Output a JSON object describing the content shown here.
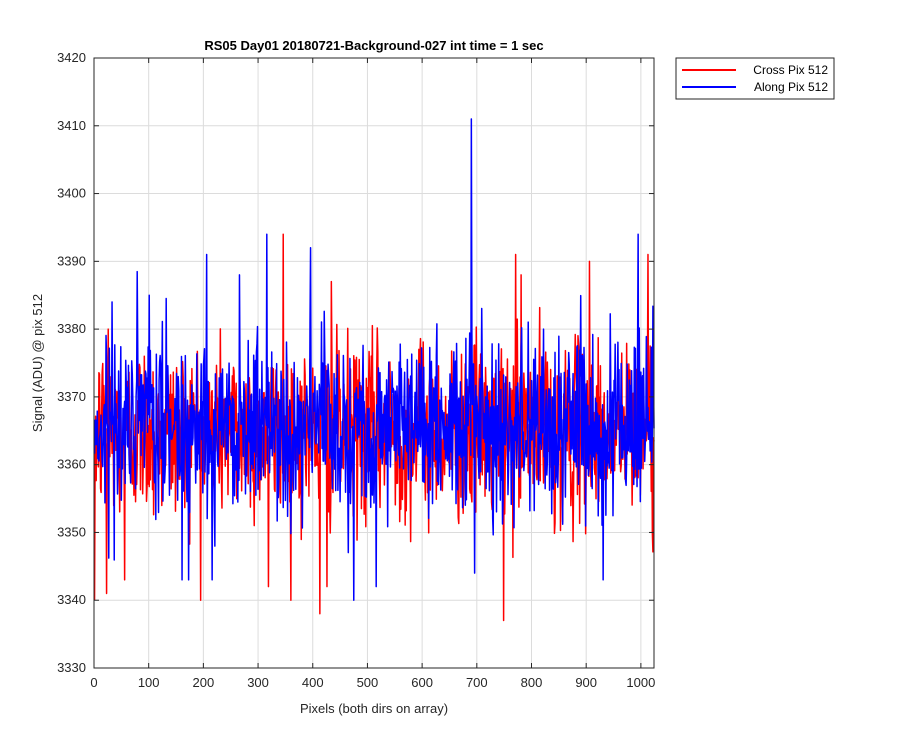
{
  "chart_data": {
    "type": "line",
    "title": "RS05 Day01 20180721-Background-027 int time = 1 sec",
    "xlabel": "Pixels (both dirs on array)",
    "ylabel": "Signal (ADU) @ pix 512",
    "xlim": [
      0,
      1024
    ],
    "ylim": [
      3330,
      3420
    ],
    "xticks": [
      0,
      100,
      200,
      300,
      400,
      500,
      600,
      700,
      800,
      900,
      1000
    ],
    "yticks": [
      3330,
      3340,
      3350,
      3360,
      3370,
      3380,
      3390,
      3400,
      3410,
      3420
    ],
    "grid": true,
    "legend_position": "outside-top-right",
    "series": [
      {
        "name": "Cross Pix 512",
        "color": "#ff0000",
        "n_points": 1024,
        "center": 3365,
        "spread": 6.5,
        "min": 3337,
        "max": 3394,
        "features": [
          {
            "x": 0,
            "y": 3340
          },
          {
            "x": 22,
            "y": 3341
          },
          {
            "x": 25,
            "y": 3380
          },
          {
            "x": 55,
            "y": 3343
          },
          {
            "x": 318,
            "y": 3342
          },
          {
            "x": 345,
            "y": 3394
          },
          {
            "x": 412,
            "y": 3338
          },
          {
            "x": 425,
            "y": 3342
          },
          {
            "x": 433,
            "y": 3387
          },
          {
            "x": 748,
            "y": 3337
          },
          {
            "x": 770,
            "y": 3391
          },
          {
            "x": 780,
            "y": 3388
          },
          {
            "x": 905,
            "y": 3390
          },
          {
            "x": 1012,
            "y": 3391
          },
          {
            "x": 1020,
            "y": 3350
          }
        ]
      },
      {
        "name": "Along Pix 512",
        "color": "#0000ff",
        "n_points": 1024,
        "center": 3366,
        "spread": 6.5,
        "min": 3340,
        "max": 3411,
        "features": [
          {
            "x": 32,
            "y": 3384
          },
          {
            "x": 100,
            "y": 3385
          },
          {
            "x": 160,
            "y": 3343
          },
          {
            "x": 205,
            "y": 3391
          },
          {
            "x": 215,
            "y": 3343
          },
          {
            "x": 265,
            "y": 3388
          },
          {
            "x": 315,
            "y": 3394
          },
          {
            "x": 395,
            "y": 3392
          },
          {
            "x": 474,
            "y": 3340
          },
          {
            "x": 515,
            "y": 3342
          },
          {
            "x": 689,
            "y": 3411
          },
          {
            "x": 695,
            "y": 3344
          },
          {
            "x": 930,
            "y": 3343
          },
          {
            "x": 994,
            "y": 3394
          }
        ]
      }
    ]
  }
}
